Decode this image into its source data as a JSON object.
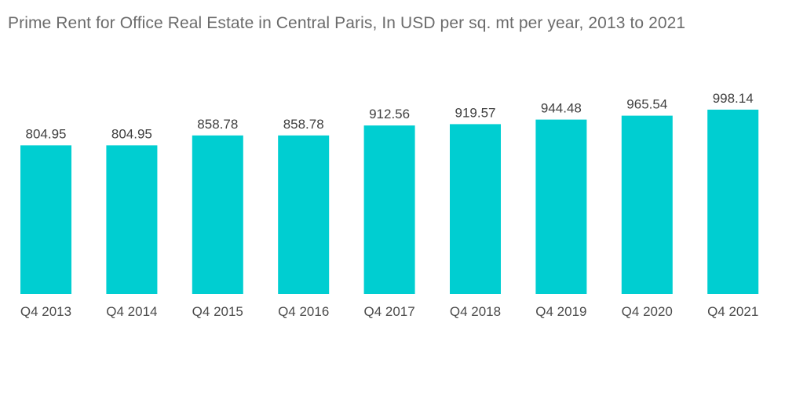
{
  "chart_data": {
    "type": "bar",
    "title": "Prime Rent for Office Real Estate in Central Paris, In USD per sq. mt per year, 2013 to 2021",
    "categories": [
      "Q4 2013",
      "Q4 2014",
      "Q4 2015",
      "Q4 2016",
      "Q4 2017",
      "Q4 2018",
      "Q4 2019",
      "Q4 2020",
      "Q4 2021"
    ],
    "values": [
      804.95,
      804.95,
      858.78,
      858.78,
      912.56,
      919.57,
      944.48,
      965.54,
      998.14
    ],
    "value_labels": [
      "804.95",
      "804.95",
      "858.78",
      "858.78",
      "912.56",
      "919.57",
      "944.48",
      "965.54",
      "998.14"
    ],
    "xlabel": "",
    "ylabel": "",
    "ylim": [
      0,
      1000
    ],
    "grid": false,
    "legend": "none",
    "colors": {
      "bar": "#00CED1",
      "title": "#6b6b6b",
      "label": "#3f3f3f"
    }
  }
}
